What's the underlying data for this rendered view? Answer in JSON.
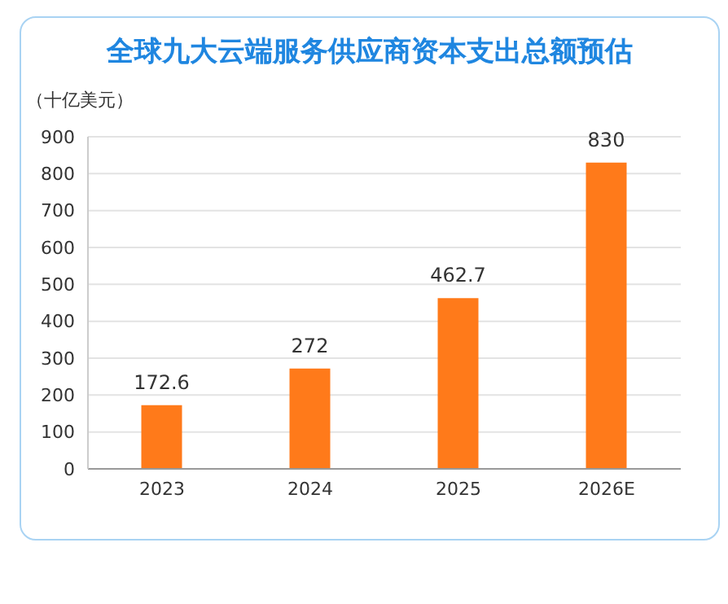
{
  "chart_data": {
    "type": "bar",
    "title": "全球九大云端服务供应商资本支出总额预估",
    "ylabel": "（十亿美元）",
    "categories": [
      "2023",
      "2024",
      "2025",
      "2026E"
    ],
    "values": [
      172.6,
      272,
      462.7,
      830
    ],
    "color": "#ff7a1a",
    "ylim": [
      0,
      900
    ],
    "yticks": [
      0,
      100,
      200,
      300,
      400,
      500,
      600,
      700,
      800,
      900
    ],
    "grid": "y",
    "data_labels": true
  }
}
